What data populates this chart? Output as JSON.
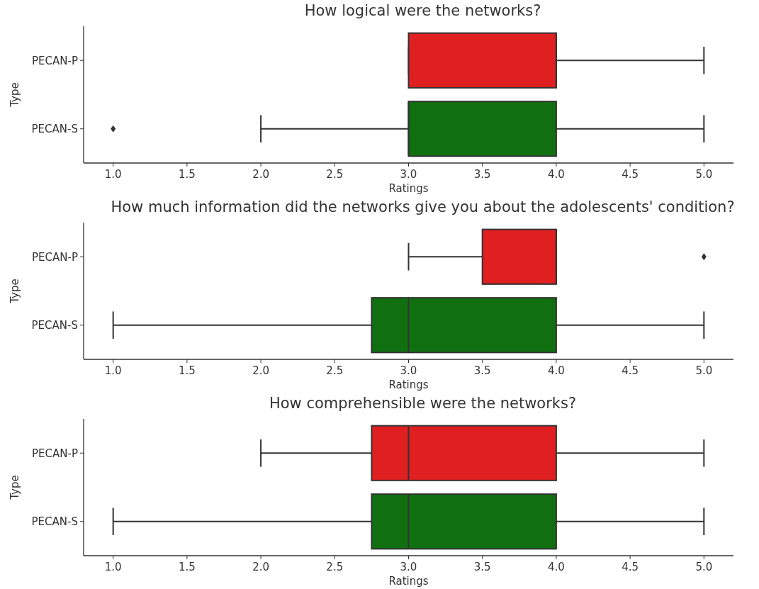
{
  "chart_data": [
    {
      "type": "box",
      "orientation": "horizontal",
      "title": "How logical were the networks?",
      "xlabel": "Ratings",
      "ylabel": "Type",
      "categories": [
        "PECAN-P",
        "PECAN-S"
      ],
      "colors": [
        "#e02020",
        "#107010"
      ],
      "marker": "diamond",
      "xlim": [
        0.8,
        5.2
      ],
      "xticks": [
        {
          "value": 1,
          "label": "1.0"
        },
        {
          "value": 1.5,
          "label": "1.5"
        },
        {
          "value": 2,
          "label": "2.0"
        },
        {
          "value": 2.5,
          "label": "2.5"
        },
        {
          "value": 3,
          "label": "3.0"
        },
        {
          "value": 3.5,
          "label": "3.5"
        },
        {
          "value": 4,
          "label": "4.0"
        },
        {
          "value": 4.5,
          "label": "4.5"
        },
        {
          "value": 5,
          "label": "5.0"
        }
      ],
      "boxes": [
        {
          "low": 3,
          "q1": 3,
          "median": 4,
          "q3": 4,
          "high": 5
        },
        {
          "low": 2,
          "q1": 3,
          "median": 3,
          "q3": 4,
          "high": 5,
          "outliers": [
            1
          ]
        }
      ]
    },
    {
      "type": "box",
      "orientation": "horizontal",
      "title": "How much information did the networks give you about the adolescents' condition?",
      "xlabel": "Ratings",
      "ylabel": "Type",
      "categories": [
        "PECAN-P",
        "PECAN-S"
      ],
      "colors": [
        "#e02020",
        "#107010"
      ],
      "marker": "diamond",
      "xlim": [
        0.8,
        5.2
      ],
      "xticks": [
        {
          "value": 1,
          "label": "1.0"
        },
        {
          "value": 1.5,
          "label": "1.5"
        },
        {
          "value": 2,
          "label": "2.0"
        },
        {
          "value": 2.5,
          "label": "2.5"
        },
        {
          "value": 3,
          "label": "3.0"
        },
        {
          "value": 3.5,
          "label": "3.5"
        },
        {
          "value": 4,
          "label": "4.0"
        },
        {
          "value": 4.5,
          "label": "4.5"
        },
        {
          "value": 5,
          "label": "5.0"
        }
      ],
      "boxes": [
        {
          "low": 3,
          "q1": 3.5,
          "median": 4,
          "q3": 4,
          "high": 4,
          "outliers": [
            5
          ]
        },
        {
          "low": 1,
          "q1": 2.75,
          "median": 3,
          "q3": 4,
          "high": 5
        }
      ]
    },
    {
      "type": "box",
      "orientation": "horizontal",
      "title": "How comprehensible were the networks?",
      "xlabel": "Ratings",
      "ylabel": "Type",
      "categories": [
        "PECAN-P",
        "PECAN-S"
      ],
      "colors": [
        "#e02020",
        "#107010"
      ],
      "xlim": [
        0.8,
        5.2
      ],
      "xticks": [
        {
          "value": 1,
          "label": "1.0"
        },
        {
          "value": 1.5,
          "label": "1.5"
        },
        {
          "value": 2,
          "label": "2.0"
        },
        {
          "value": 2.5,
          "label": "2.5"
        },
        {
          "value": 3,
          "label": "3.0"
        },
        {
          "value": 3.5,
          "label": "3.5"
        },
        {
          "value": 4,
          "label": "4.0"
        },
        {
          "value": 4.5,
          "label": "4.5"
        },
        {
          "value": 5,
          "label": "5.0"
        }
      ],
      "boxes": [
        {
          "low": 2,
          "q1": 2.75,
          "median": 3,
          "q3": 4,
          "high": 5
        },
        {
          "low": 1,
          "q1": 2.75,
          "median": 3,
          "q3": 4,
          "high": 5
        }
      ]
    }
  ]
}
